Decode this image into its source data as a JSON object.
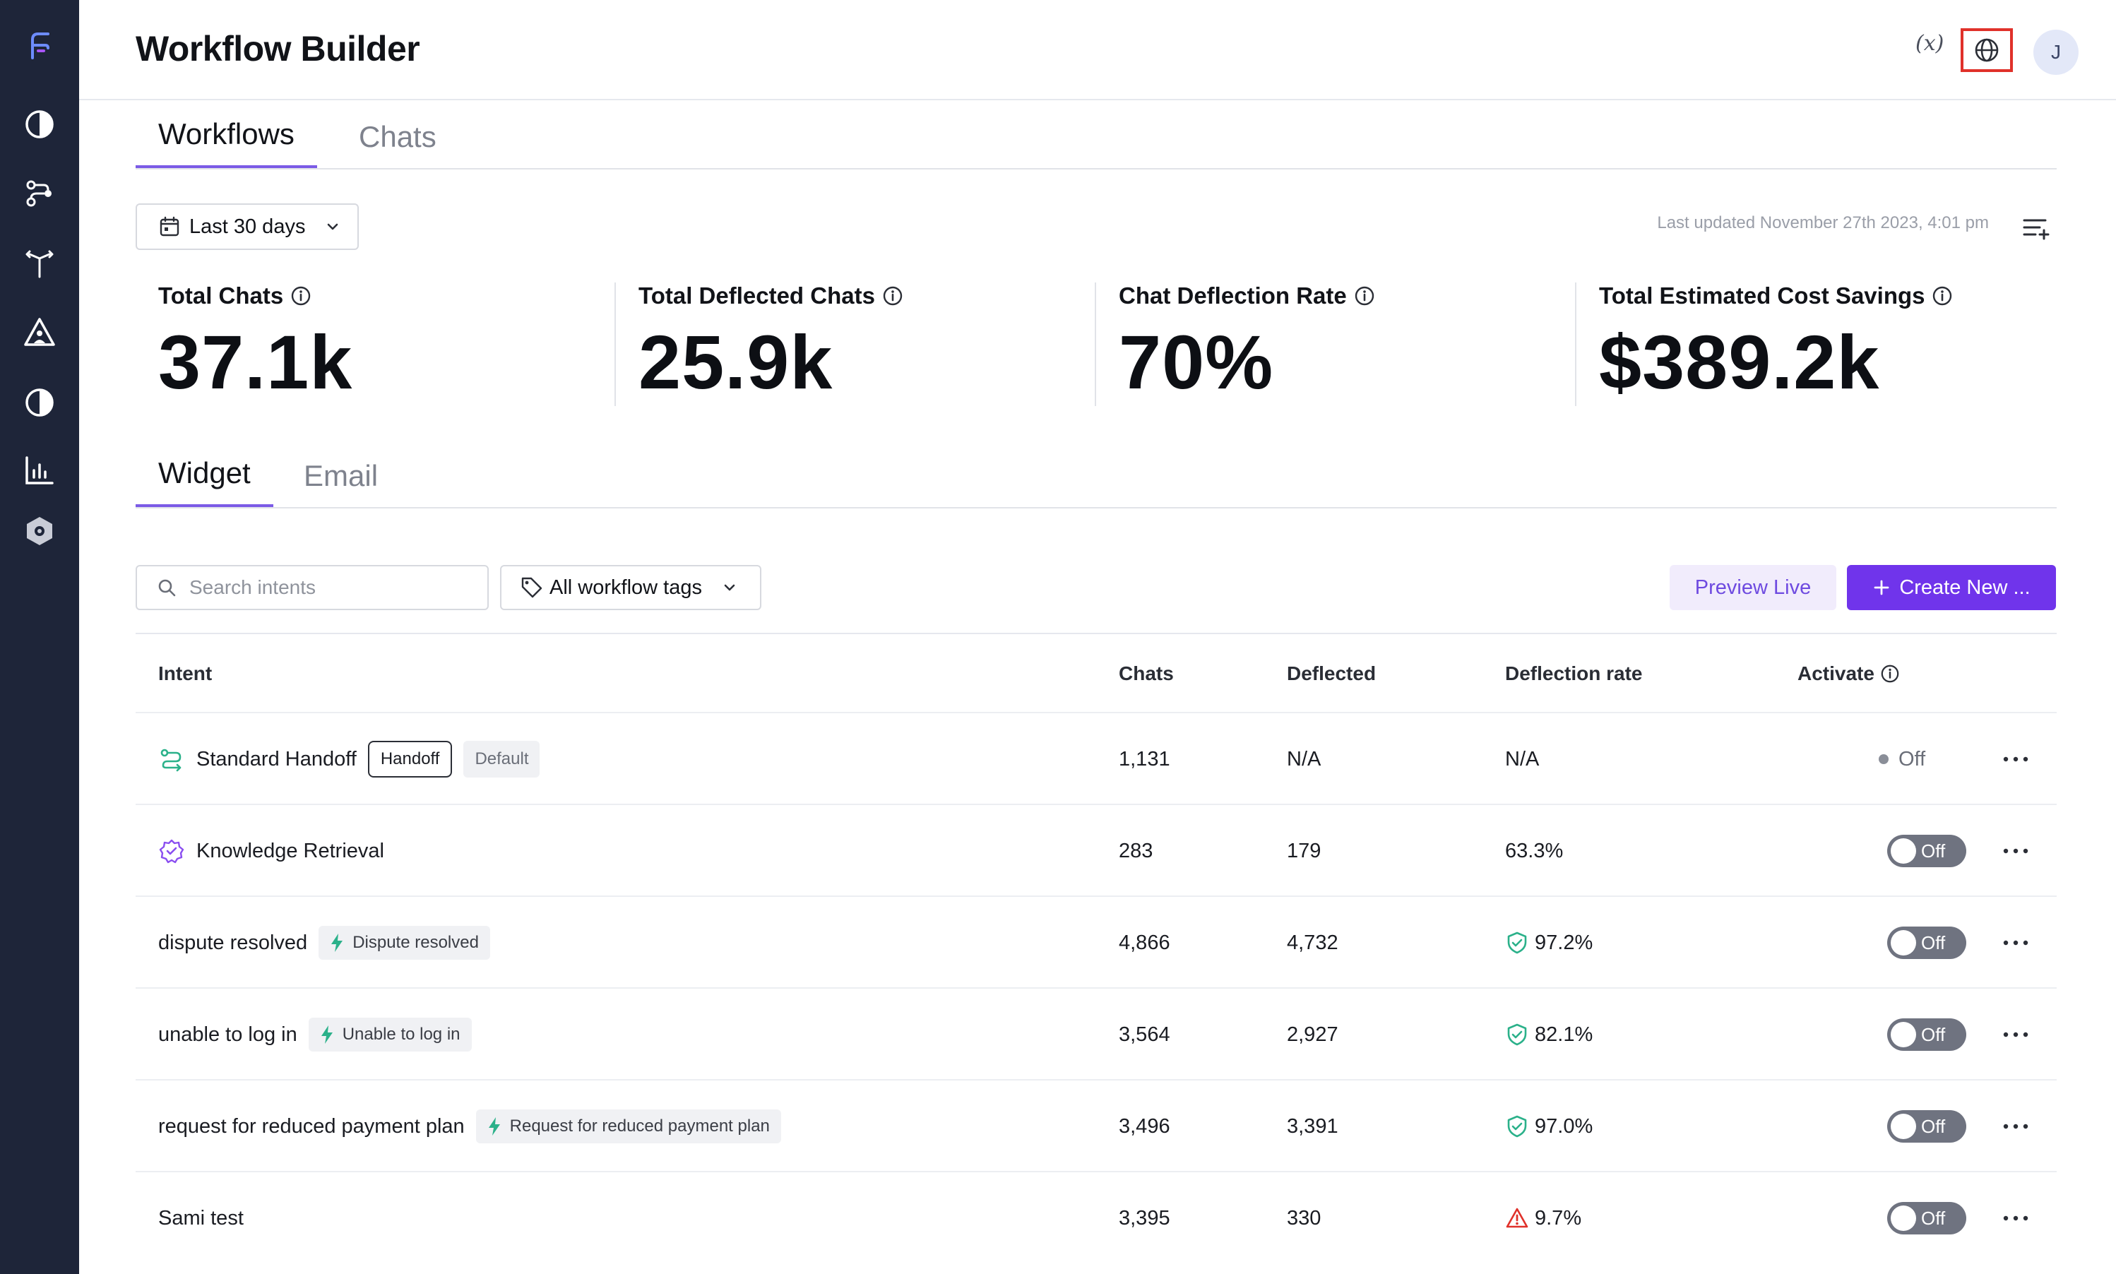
{
  "app": {
    "title": "Workflow Builder"
  },
  "header": {
    "variables_label": "(x)",
    "avatar_initial": "J"
  },
  "sidebar": {
    "items": [
      {
        "icon": "logo-icon"
      },
      {
        "icon": "pie-chart-icon"
      },
      {
        "icon": "workflow-nodes-icon"
      },
      {
        "icon": "split-arrows-icon"
      },
      {
        "icon": "person-triangle-icon"
      },
      {
        "icon": "half-circle-icon"
      },
      {
        "icon": "bar-chart-icon"
      },
      {
        "icon": "hexagon-settings-icon"
      }
    ]
  },
  "main_tabs": [
    {
      "label": "Workflows",
      "active": true
    },
    {
      "label": "Chats",
      "active": false
    }
  ],
  "filter": {
    "date_range": "Last 30 days",
    "last_updated": "Last updated November 27th 2023, 4:01 pm"
  },
  "metrics": [
    {
      "label": "Total Chats",
      "value": "37.1k"
    },
    {
      "label": "Total Deflected Chats",
      "value": "25.9k"
    },
    {
      "label": "Chat Deflection Rate",
      "value": "70%"
    },
    {
      "label": "Total Estimated Cost Savings",
      "value": "$389.2k"
    }
  ],
  "channel_tabs": [
    {
      "label": "Widget",
      "active": true
    },
    {
      "label": "Email",
      "active": false
    }
  ],
  "controls": {
    "search_placeholder": "Search intents",
    "tags_label": "All workflow tags",
    "preview_label": "Preview Live",
    "create_label": "Create New ..."
  },
  "table": {
    "columns": {
      "intent": "Intent",
      "chats": "Chats",
      "deflected": "Deflected",
      "rate": "Deflection rate",
      "activate": "Activate"
    },
    "rows": [
      {
        "intent": "Standard Handoff",
        "icon": "handoff-route-icon",
        "badges": [
          "Handoff",
          "Default"
        ],
        "chats": "1,131",
        "deflected": "N/A",
        "rate": "N/A",
        "rate_status": "none",
        "activate": "Off",
        "activate_type": "text"
      },
      {
        "intent": "Knowledge Retrieval",
        "icon": "verified-badge-icon",
        "badges": [],
        "chats": "283",
        "deflected": "179",
        "rate": "63.3%",
        "rate_status": "none",
        "activate": "Off",
        "activate_type": "toggle"
      },
      {
        "intent": "dispute resolved",
        "icon": "",
        "tag": "Dispute resolved",
        "chats": "4,866",
        "deflected": "4,732",
        "rate": "97.2%",
        "rate_status": "good",
        "activate": "Off",
        "activate_type": "toggle"
      },
      {
        "intent": "unable to log in",
        "icon": "",
        "tag": "Unable to log in",
        "chats": "3,564",
        "deflected": "2,927",
        "rate": "82.1%",
        "rate_status": "good",
        "activate": "Off",
        "activate_type": "toggle"
      },
      {
        "intent": "request for reduced payment plan",
        "icon": "",
        "tag": "Request for reduced payment plan",
        "chats": "3,496",
        "deflected": "3,391",
        "rate": "97.0%",
        "rate_status": "good",
        "activate": "Off",
        "activate_type": "toggle"
      },
      {
        "intent": "Sami test",
        "icon": "",
        "tag": "",
        "chats": "3,395",
        "deflected": "330",
        "rate": "9.7%",
        "rate_status": "warning",
        "activate": "Off",
        "activate_type": "toggle"
      }
    ]
  },
  "colors": {
    "sidebar": "#1e2539",
    "accent": "#7034eb",
    "good": "#2bb18a",
    "warning": "#e0312a"
  }
}
